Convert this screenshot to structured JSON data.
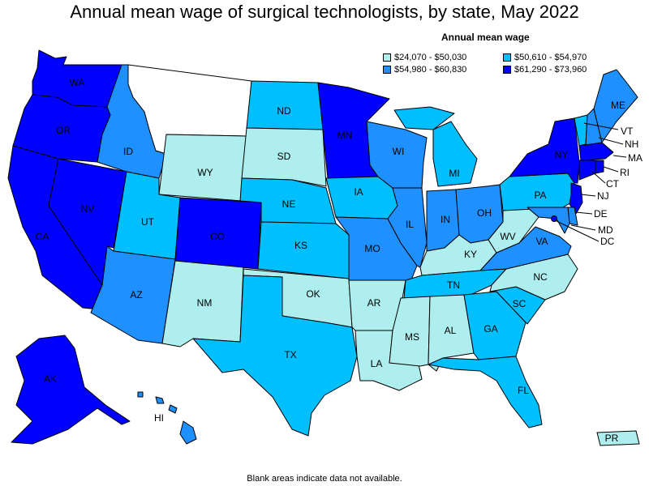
{
  "title": "Annual mean wage of surgical technologists, by state, May 2022",
  "legend": {
    "title": "Annual mean wage",
    "bins": [
      {
        "label": "$24,070 - $50,030",
        "color": "#afeeee"
      },
      {
        "label": "$50,610 - $54,970",
        "color": "#00bfff"
      },
      {
        "label": "$54,980 - $60,830",
        "color": "#1e90ff"
      },
      {
        "label": "$61,290 - $73,960",
        "color": "#0000ff"
      }
    ]
  },
  "footnote": "Blank areas indicate data not available.",
  "colors": {
    "bin0": "#afeeee",
    "bin1": "#00bfff",
    "bin2": "#1e90ff",
    "bin3": "#0000ff",
    "no_data": "#ffffff"
  },
  "states": {
    "WA": {
      "label": "WA",
      "bin": 3
    },
    "OR": {
      "label": "OR",
      "bin": 3
    },
    "CA": {
      "label": "CA",
      "bin": 3
    },
    "NV": {
      "label": "NV",
      "bin": 3
    },
    "ID": {
      "label": "ID",
      "bin": 2
    },
    "MT": {
      "label": "",
      "bin": -1
    },
    "WY": {
      "label": "WY",
      "bin": 0
    },
    "UT": {
      "label": "UT",
      "bin": 1
    },
    "AZ": {
      "label": "AZ",
      "bin": 2
    },
    "CO": {
      "label": "CO",
      "bin": 3
    },
    "NM": {
      "label": "NM",
      "bin": 0
    },
    "ND": {
      "label": "ND",
      "bin": 1
    },
    "SD": {
      "label": "SD",
      "bin": 0
    },
    "NE": {
      "label": "NE",
      "bin": 1
    },
    "KS": {
      "label": "KS",
      "bin": 1
    },
    "OK": {
      "label": "OK",
      "bin": 0
    },
    "TX": {
      "label": "TX",
      "bin": 1
    },
    "MN": {
      "label": "MN",
      "bin": 3
    },
    "IA": {
      "label": "IA",
      "bin": 1
    },
    "MO": {
      "label": "MO",
      "bin": 2
    },
    "AR": {
      "label": "AR",
      "bin": 0
    },
    "LA": {
      "label": "LA",
      "bin": 0
    },
    "WI": {
      "label": "WI",
      "bin": 2
    },
    "IL": {
      "label": "IL",
      "bin": 2
    },
    "MI": {
      "label": "MI",
      "bin": 1
    },
    "IN": {
      "label": "IN",
      "bin": 2
    },
    "OH": {
      "label": "OH",
      "bin": 2
    },
    "KY": {
      "label": "KY",
      "bin": 0
    },
    "TN": {
      "label": "TN",
      "bin": 1
    },
    "MS": {
      "label": "MS",
      "bin": 0
    },
    "AL": {
      "label": "AL",
      "bin": 0
    },
    "GA": {
      "label": "GA",
      "bin": 1
    },
    "FL": {
      "label": "FL",
      "bin": 1
    },
    "SC": {
      "label": "SC",
      "bin": 1
    },
    "NC": {
      "label": "NC",
      "bin": 0
    },
    "VA": {
      "label": "VA",
      "bin": 2
    },
    "WV": {
      "label": "WV",
      "bin": 0
    },
    "PA": {
      "label": "PA",
      "bin": 1
    },
    "NY": {
      "label": "NY",
      "bin": 3
    },
    "ME": {
      "label": "ME",
      "bin": 2
    },
    "VT": {
      "label": "VT",
      "bin": 1
    },
    "NH": {
      "label": "NH",
      "bin": 2
    },
    "MA": {
      "label": "MA",
      "bin": 3
    },
    "RI": {
      "label": "RI",
      "bin": 3
    },
    "CT": {
      "label": "CT",
      "bin": 3
    },
    "NJ": {
      "label": "NJ",
      "bin": 3
    },
    "DE": {
      "label": "DE",
      "bin": 2
    },
    "MD": {
      "label": "MD",
      "bin": 2
    },
    "DC": {
      "label": "DC",
      "bin": 3
    },
    "AK": {
      "label": "AK",
      "bin": 3
    },
    "HI": {
      "label": "HI",
      "bin": 2
    },
    "PR": {
      "label": "PR",
      "bin": 0
    }
  }
}
